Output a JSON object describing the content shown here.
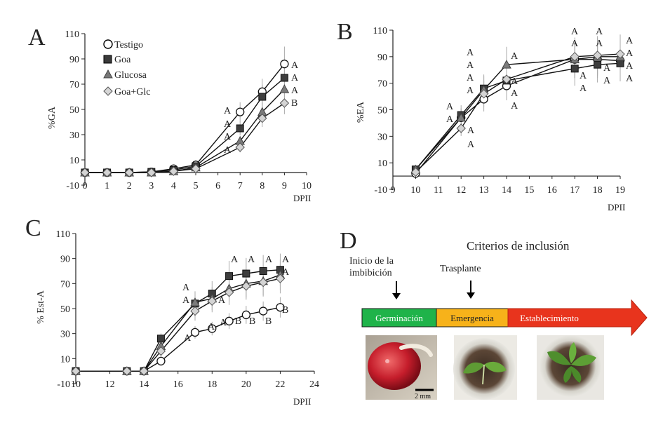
{
  "chart_data": [
    {
      "panel_letter": "A",
      "type": "line",
      "xlabel": "DPII",
      "ylabel": "%GA",
      "xlim": [
        0,
        10
      ],
      "ylim": [
        -10,
        110
      ],
      "xticks": [
        "0",
        "1",
        "2",
        "3",
        "4",
        "5",
        "6",
        "7",
        "8",
        "9",
        "10"
      ],
      "yticks": [
        "-10",
        "10",
        "30",
        "50",
        "70",
        "90",
        "110"
      ],
      "legend": [
        "Testigo",
        "Goa",
        "Glucosa",
        "Goa+Glc"
      ],
      "series": [
        {
          "name": "Testigo",
          "marker": "circle",
          "x": [
            0,
            1,
            2,
            3,
            4,
            5,
            7,
            8,
            9
          ],
          "values": [
            0,
            0,
            0,
            0.5,
            3,
            6,
            48,
            64,
            86
          ]
        },
        {
          "name": "Goa",
          "marker": "square",
          "x": [
            0,
            1,
            2,
            3,
            4,
            5,
            7,
            8,
            9
          ],
          "values": [
            0,
            0,
            0,
            0.5,
            2,
            5,
            35,
            60,
            75
          ]
        },
        {
          "name": "Glucosa",
          "marker": "triangle",
          "x": [
            0,
            1,
            2,
            3,
            4,
            5,
            7,
            8,
            9
          ],
          "values": [
            0,
            0,
            0,
            0,
            1,
            4,
            25,
            48,
            66
          ]
        },
        {
          "name": "Goa+Glc",
          "marker": "diamond",
          "x": [
            0,
            1,
            2,
            3,
            4,
            5,
            7,
            8,
            9
          ],
          "values": [
            0,
            0,
            0,
            0,
            1,
            3,
            20,
            43,
            55
          ]
        }
      ],
      "annotations": [
        {
          "x": 9,
          "labels": [
            "A",
            "A",
            "A",
            "B"
          ]
        },
        {
          "x": 7,
          "labels": [
            "A",
            "A",
            "A",
            "A"
          ]
        }
      ]
    },
    {
      "panel_letter": "B",
      "type": "line",
      "xlabel": "DPII",
      "ylabel": "%EA",
      "xlim": [
        9,
        19
      ],
      "ylim": [
        -10,
        110
      ],
      "xticks": [
        "9",
        "10",
        "11",
        "12",
        "13",
        "14",
        "15",
        "16",
        "17",
        "18",
        "19"
      ],
      "yticks": [
        "-10",
        "10",
        "30",
        "50",
        "70",
        "90",
        "110"
      ],
      "series": [
        {
          "name": "Testigo",
          "marker": "circle",
          "x": [
            10,
            12,
            13,
            14,
            17,
            18,
            19
          ],
          "values": [
            2,
            44,
            58,
            68,
            88,
            88,
            87
          ]
        },
        {
          "name": "Goa",
          "marker": "square",
          "x": [
            10,
            12,
            13,
            14,
            17,
            18,
            19
          ],
          "values": [
            5,
            46,
            66,
            72,
            81,
            84,
            85
          ]
        },
        {
          "name": "Glucosa",
          "marker": "triangle",
          "x": [
            10,
            12,
            13,
            14,
            17,
            18,
            19
          ],
          "values": [
            5,
            44,
            65,
            84,
            88,
            90,
            90
          ]
        },
        {
          "name": "Goa+Glc",
          "marker": "diamond",
          "x": [
            10,
            12,
            13,
            14,
            17,
            18,
            19
          ],
          "values": [
            3,
            36,
            62,
            73,
            90,
            91,
            92
          ]
        }
      ],
      "annotations": [
        {
          "x": 12,
          "labels": [
            "A",
            "A",
            "A",
            "A"
          ]
        },
        {
          "x": 13,
          "labels": [
            "A",
            "A",
            "A",
            "A"
          ]
        },
        {
          "x": 14,
          "labels": [
            "A",
            "A",
            "A",
            "A"
          ]
        },
        {
          "x": 17,
          "labels": [
            "A",
            "A",
            "A",
            "A"
          ]
        },
        {
          "x": 18,
          "labels": [
            "A",
            "A",
            "A",
            "A"
          ]
        },
        {
          "x": 19,
          "labels": [
            "A",
            "A",
            "A",
            "A"
          ]
        }
      ]
    },
    {
      "panel_letter": "C",
      "type": "line",
      "xlabel": "DPII",
      "ylabel": "% Est-A",
      "xlim": [
        10,
        24
      ],
      "ylim": [
        -10,
        110
      ],
      "xticks": [
        "10",
        "12",
        "14",
        "16",
        "18",
        "20",
        "22",
        "24"
      ],
      "yticks": [
        "-10",
        "10",
        "30",
        "50",
        "70",
        "90",
        "110"
      ],
      "series": [
        {
          "name": "Testigo",
          "marker": "circle",
          "x": [
            10,
            13,
            14,
            15,
            17,
            18,
            19,
            20,
            21,
            22
          ],
          "values": [
            0,
            0,
            0,
            8,
            31,
            34,
            40,
            45,
            48,
            51
          ]
        },
        {
          "name": "Goa",
          "marker": "square",
          "x": [
            10,
            13,
            14,
            15,
            17,
            18,
            19,
            20,
            21,
            22
          ],
          "values": [
            0,
            0,
            0,
            26,
            54,
            62,
            76,
            78,
            80,
            81
          ]
        },
        {
          "name": "Glucosa",
          "marker": "triangle",
          "x": [
            10,
            13,
            14,
            15,
            17,
            18,
            19,
            20,
            21,
            22
          ],
          "values": [
            0,
            0,
            0,
            20,
            55,
            58,
            66,
            70,
            72,
            77
          ]
        },
        {
          "name": "Goa+Glc",
          "marker": "diamond",
          "x": [
            10,
            13,
            14,
            15,
            17,
            18,
            19,
            20,
            21,
            22
          ],
          "values": [
            0,
            0,
            0,
            16,
            48,
            56,
            63,
            68,
            71,
            74
          ]
        }
      ],
      "annotations": [
        {
          "x": 22,
          "labels": [
            "A",
            "A",
            "B"
          ]
        },
        {
          "x": 19,
          "labels": [
            "A",
            "A",
            "A",
            "B"
          ]
        }
      ]
    }
  ],
  "diagram": {
    "panel_letter": "D",
    "title": "Criterios de inclusión",
    "arrow_labels": {
      "imbibition": "Inicio de la\nimbibición",
      "transplant": "Trasplante"
    },
    "stages": [
      {
        "label": "Germinación",
        "color": "#1fb34a"
      },
      {
        "label": "Emergencia",
        "color": "#f7b21a"
      },
      {
        "label": "Establecimiento",
        "color": "#e8341d"
      }
    ],
    "scale_bar": "2 mm"
  }
}
